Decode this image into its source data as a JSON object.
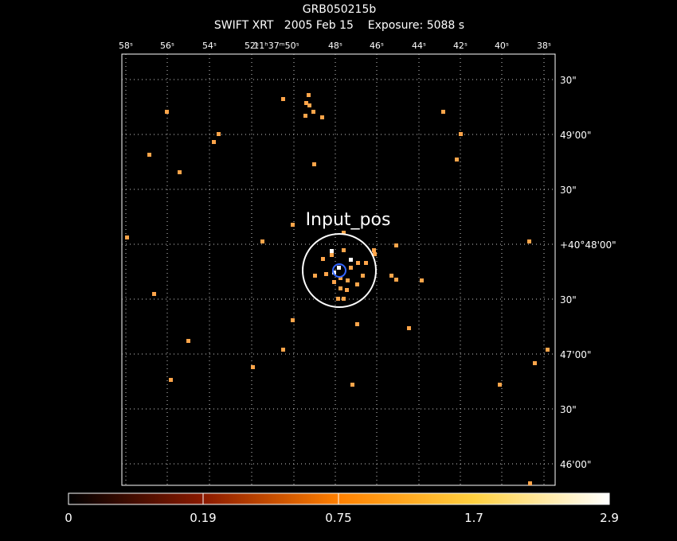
{
  "header": {
    "title": "GRB050215b",
    "subtitle": "SWIFT XRT   2005 Feb 15    Exposure: 5088 s"
  },
  "ra_labels": [
    "58ˢ",
    "56ˢ",
    "54ˢ",
    "52ˢ",
    "11ʰ37ᵐ50ˢ",
    "48ˢ",
    "46ˢ",
    "44ˢ",
    "42ˢ",
    "40ˢ",
    "38ˢ"
  ],
  "dec_labels": [
    "30\"",
    "49'00\"",
    "30\"",
    "+40°48'00\"",
    "30\"",
    "47'00\"",
    "30\"",
    "46'00\""
  ],
  "source_label": "Input_pos",
  "colorbar": {
    "labels": [
      "0",
      "0.19",
      "0.75",
      "1.7",
      "2.9"
    ]
  }
}
